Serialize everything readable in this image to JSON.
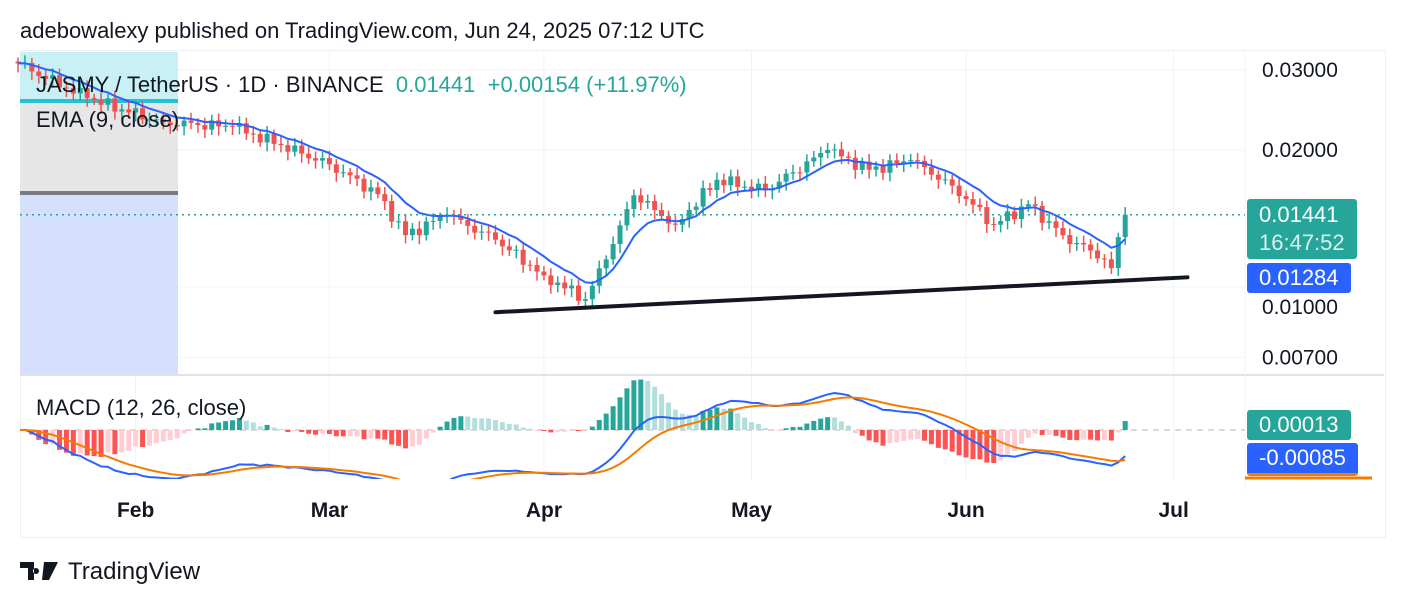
{
  "header": {
    "published": "adebowalexy published on TradingView.com, Jun 24, 2025 07:12 UTC"
  },
  "legend": {
    "symbol": "JASMY / TetherUS · 1D · BINANCE",
    "price": "0.01441",
    "change": "+0.00154 (+11.97%)",
    "ema": "EMA (9, close)",
    "macd": "MACD (12, 26, close)"
  },
  "badges": {
    "last_price": "0.01441",
    "countdown": "16:47:52",
    "ema_value": "0.01284",
    "macd_hist": "0.00013",
    "macd_value": "-0.00085"
  },
  "footer": {
    "brand": "TradingView"
  },
  "colors": {
    "up": "#26a69a",
    "down": "#ef5350",
    "ema": "#2962ff",
    "signal": "#f57c00"
  },
  "chart_data": {
    "type": "candlestick",
    "price_ticks": [
      "0.03000",
      "0.02000",
      "0.01000",
      "0.00700"
    ],
    "price_tick_values": [
      0.03,
      0.02,
      0.01,
      0.007
    ],
    "time_ticks": [
      "Feb",
      "Mar",
      "Apr",
      "May",
      "Jun",
      "Jul"
    ],
    "time_tick_days": [
      17,
      45,
      76,
      106,
      137,
      167
    ],
    "scale": "log",
    "close_anchors": [
      [
        0,
        0.031
      ],
      [
        10,
        0.026
      ],
      [
        21,
        0.023
      ],
      [
        31,
        0.0225
      ],
      [
        38,
        0.0205
      ],
      [
        45,
        0.0186
      ],
      [
        52,
        0.016
      ],
      [
        56,
        0.013
      ],
      [
        62,
        0.0144
      ],
      [
        69,
        0.0127
      ],
      [
        76,
        0.0106
      ],
      [
        82,
        0.0094
      ],
      [
        85,
        0.0115
      ],
      [
        89,
        0.0159
      ],
      [
        95,
        0.0137
      ],
      [
        101,
        0.0172
      ],
      [
        108,
        0.0163
      ],
      [
        117,
        0.02
      ],
      [
        123,
        0.0181
      ],
      [
        129,
        0.019
      ],
      [
        135,
        0.0167
      ],
      [
        141,
        0.0137
      ],
      [
        146,
        0.0152
      ],
      [
        151,
        0.013
      ],
      [
        157,
        0.0115
      ],
      [
        158,
        0.011
      ],
      [
        159,
        0.01287
      ],
      [
        160,
        0.01441
      ]
    ],
    "trendline": [
      [
        69,
        0.0088
      ],
      [
        169,
        0.0105
      ]
    ],
    "indicators": [
      "EMA 9",
      "MACD 12 26 9"
    ]
  }
}
